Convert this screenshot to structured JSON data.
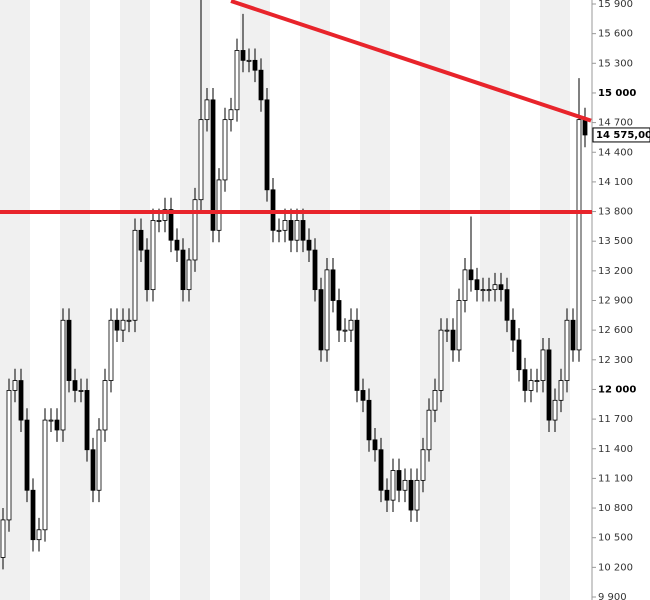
{
  "chart_data": {
    "type": "candlestick",
    "ylim": [
      9900,
      15900
    ],
    "yticks": [
      {
        "value": 9900,
        "label": "9 900"
      },
      {
        "value": 10200,
        "label": "10 200"
      },
      {
        "value": 10500,
        "label": "10 500"
      },
      {
        "value": 10800,
        "label": "10 800"
      },
      {
        "value": 11100,
        "label": "11 100"
      },
      {
        "value": 11400,
        "label": "11 400"
      },
      {
        "value": 11700,
        "label": "11 700"
      },
      {
        "value": 12000,
        "label": "12 000"
      },
      {
        "value": 12300,
        "label": "12 300"
      },
      {
        "value": 12600,
        "label": "12 600"
      },
      {
        "value": 12900,
        "label": "12 900"
      },
      {
        "value": 13200,
        "label": "13 200"
      },
      {
        "value": 13500,
        "label": "13 500"
      },
      {
        "value": 13800,
        "label": "13 800"
      },
      {
        "value": 14100,
        "label": "14 100"
      },
      {
        "value": 14400,
        "label": "14 400"
      },
      {
        "value": 14700,
        "label": "14 700"
      },
      {
        "value": 15000,
        "label": "15 000"
      },
      {
        "value": 15300,
        "label": "15 300"
      },
      {
        "value": 15600,
        "label": "15 600"
      },
      {
        "value": 15900,
        "label": "15 900"
      }
    ],
    "open": [
      10300,
      10680,
      11990,
      12090,
      11690,
      10980,
      10480,
      10580,
      11690,
      11690,
      11590,
      12700,
      12090,
      11990,
      11990,
      11390,
      10980,
      11590,
      12090,
      12700,
      12600,
      12700,
      12700,
      13610,
      13410,
      13010,
      13710,
      13710,
      13820,
      13510,
      13410,
      13010,
      13310,
      13920,
      14730,
      14930,
      13610,
      14120,
      14730,
      14830,
      15430,
      15330,
      15330,
      15230,
      14930,
      14020,
      13610,
      13610,
      13710,
      13510,
      13710,
      13510,
      13410,
      13010,
      12400,
      13210,
      12900,
      12600,
      12600,
      12700,
      11990,
      11890,
      11490,
      11390,
      10980,
      10880,
      11180,
      10980,
      11080,
      10780,
      11080,
      11390,
      11790,
      11990,
      12600,
      12600,
      12400,
      12900,
      13210,
      13110,
      13010,
      13010,
      13010,
      13060,
      13010,
      12700,
      12500,
      12200,
      11990,
      12090,
      12090,
      12400,
      11690,
      11890,
      12090,
      12700,
      12400,
      14730
    ],
    "high": [
      10800,
      12110,
      12210,
      12210,
      11810,
      11100,
      10700,
      11810,
      11810,
      11810,
      12820,
      12820,
      12210,
      12110,
      12110,
      11510,
      11710,
      12210,
      12820,
      12820,
      12820,
      12820,
      13730,
      13730,
      13530,
      13830,
      13830,
      13940,
      13940,
      13630,
      13530,
      13430,
      14040,
      16000,
      15050,
      15050,
      14240,
      14850,
      14950,
      15550,
      15800,
      15450,
      15450,
      15350,
      15050,
      14140,
      13730,
      13830,
      13830,
      13830,
      13830,
      13630,
      13530,
      13130,
      13330,
      13330,
      13020,
      12720,
      12820,
      12820,
      12110,
      12010,
      11610,
      11510,
      11100,
      11300,
      11300,
      11200,
      11200,
      11200,
      11510,
      11910,
      12110,
      12720,
      12720,
      12720,
      13020,
      13330,
      13750,
      13230,
      13130,
      13130,
      13180,
      13180,
      13130,
      12820,
      12620,
      12320,
      12210,
      12210,
      12520,
      12520,
      12010,
      12210,
      12820,
      12820,
      15150,
      14850
    ],
    "low": [
      10180,
      10560,
      11870,
      11570,
      10860,
      10360,
      10360,
      10460,
      11570,
      11470,
      11470,
      11970,
      11870,
      11870,
      11270,
      10860,
      10860,
      11470,
      11970,
      12480,
      12480,
      12580,
      12580,
      13290,
      12890,
      12890,
      13590,
      13590,
      13390,
      13290,
      12890,
      12890,
      13190,
      13800,
      14610,
      13490,
      13490,
      14000,
      14610,
      14710,
      15210,
      15210,
      15110,
      14810,
      13900,
      13490,
      13490,
      13490,
      13390,
      13390,
      13390,
      13290,
      12890,
      12280,
      12280,
      12780,
      12480,
      12480,
      12480,
      11870,
      11770,
      11370,
      11270,
      10860,
      10760,
      10760,
      10860,
      10860,
      10660,
      10660,
      10960,
      11270,
      11670,
      11870,
      12480,
      12280,
      12280,
      12780,
      12990,
      12890,
      12890,
      12890,
      12890,
      12890,
      12580,
      12380,
      12080,
      11870,
      11870,
      11970,
      11970,
      11570,
      11570,
      11770,
      11970,
      12280,
      12280,
      14450
    ],
    "close": [
      10680,
      11990,
      12090,
      11690,
      10980,
      10480,
      10580,
      11690,
      11690,
      11590,
      12700,
      12090,
      11990,
      11990,
      11390,
      10980,
      11590,
      12090,
      12700,
      12600,
      12700,
      12700,
      13610,
      13410,
      13010,
      13710,
      13710,
      13820,
      13510,
      13410,
      13010,
      13310,
      13920,
      14730,
      14930,
      13610,
      14120,
      14730,
      14830,
      15430,
      15330,
      15330,
      15230,
      14930,
      14020,
      13610,
      13610,
      13710,
      13510,
      13710,
      13510,
      13410,
      13010,
      12400,
      13210,
      12900,
      12600,
      12600,
      12700,
      11990,
      11890,
      11490,
      11390,
      10980,
      10880,
      11180,
      10980,
      11080,
      10780,
      11080,
      11390,
      11790,
      11990,
      12600,
      12600,
      12400,
      12900,
      13210,
      13110,
      13010,
      13010,
      13010,
      13060,
      13010,
      12700,
      12500,
      12200,
      11990,
      12090,
      12090,
      12400,
      11690,
      11890,
      12090,
      12700,
      12400,
      14730,
      14575
    ],
    "last_price_label": "14 575,00",
    "horizontal_line": {
      "value": 13795,
      "color": "#e8242b"
    },
    "trendline": {
      "color": "#e8242b",
      "points": [
        {
          "x": 38,
          "y": 15930
        },
        {
          "x": 98,
          "y": 14720
        }
      ]
    },
    "up_color": "#ffffff",
    "down_color": "#000000"
  }
}
